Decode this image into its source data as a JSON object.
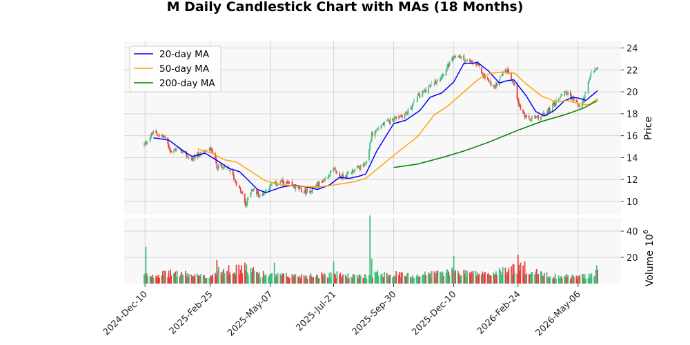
{
  "chart_data": {
    "type": "candlestick",
    "title": "M Daily Candlestick Chart with MAs (18 Months)",
    "price_axis": {
      "label": "Price",
      "ylim": [
        8.8,
        24.6
      ],
      "ticks": [
        10,
        12,
        14,
        16,
        18,
        20,
        22,
        24
      ]
    },
    "volume_axis": {
      "label": "Volume",
      "exponent_label": "10",
      "exponent_power": "6",
      "ylim": [
        0,
        50
      ],
      "ticks": [
        20,
        40
      ]
    },
    "x_axis": {
      "start": "2024-11-26",
      "end": "2026-05-29",
      "tick_labels": [
        "2024-Dec-10",
        "2025-Feb-25",
        "2025-May-07",
        "2025-Jul-21",
        "2025-Sep-30",
        "2025-Dec-10",
        "2026-Feb-24",
        "2026-May-06"
      ]
    },
    "grid": true,
    "legend_position": "top-left",
    "colors": {
      "up": "#3fbf7f",
      "down": "#e8403f",
      "ma20": "#0000ff",
      "ma50": "#ffa500",
      "ma200": "#008000"
    },
    "close_anchors": [
      [
        "2024-12-10",
        15.2
      ],
      [
        "2024-12-20",
        16.3
      ],
      [
        "2025-01-03",
        15.8
      ],
      [
        "2025-01-10",
        14.4
      ],
      [
        "2025-01-17",
        14.9
      ],
      [
        "2025-02-03",
        13.8
      ],
      [
        "2025-02-12",
        14.3
      ],
      [
        "2025-02-27",
        14.8
      ],
      [
        "2025-03-05",
        13.2
      ],
      [
        "2025-03-20",
        12.9
      ],
      [
        "2025-04-04",
        10.6
      ],
      [
        "2025-04-08",
        9.6
      ],
      [
        "2025-04-15",
        11.2
      ],
      [
        "2025-04-25",
        10.5
      ],
      [
        "2025-05-07",
        11.4
      ],
      [
        "2025-05-20",
        11.8
      ],
      [
        "2025-06-05",
        11.3
      ],
      [
        "2025-06-20",
        10.8
      ],
      [
        "2025-07-10",
        12.0
      ],
      [
        "2025-07-21",
        12.9
      ],
      [
        "2025-07-30",
        12.2
      ],
      [
        "2025-08-15",
        12.9
      ],
      [
        "2025-08-28",
        13.3
      ],
      [
        "2025-09-04",
        16.1
      ],
      [
        "2025-09-15",
        16.9
      ],
      [
        "2025-09-30",
        17.6
      ],
      [
        "2025-10-15",
        18.0
      ],
      [
        "2025-10-29",
        19.6
      ],
      [
        "2025-11-12",
        20.5
      ],
      [
        "2025-11-26",
        21.5
      ],
      [
        "2025-12-08",
        22.9
      ],
      [
        "2025-12-15",
        23.3
      ],
      [
        "2025-12-24",
        22.8
      ],
      [
        "2026-01-06",
        22.5
      ],
      [
        "2026-01-16",
        21.3
      ],
      [
        "2026-01-28",
        20.4
      ],
      [
        "2026-02-04",
        21.6
      ],
      [
        "2026-02-12",
        22.0
      ],
      [
        "2026-02-20",
        20.5
      ],
      [
        "2026-02-26",
        18.6
      ],
      [
        "2026-03-06",
        17.5
      ],
      [
        "2026-03-17",
        17.6
      ],
      [
        "2026-03-27",
        17.9
      ],
      [
        "2026-04-08",
        18.9
      ],
      [
        "2026-04-20",
        20.1
      ],
      [
        "2026-05-01",
        19.3
      ],
      [
        "2026-05-08",
        18.6
      ],
      [
        "2026-05-15",
        19.8
      ],
      [
        "2026-05-22",
        21.9
      ],
      [
        "2026-05-29",
        22.1
      ]
    ],
    "series": [
      {
        "name": "20-day MA",
        "points": [
          [
            "2024-12-20",
            15.8
          ],
          [
            "2025-01-07",
            15.6
          ],
          [
            "2025-01-28",
            14.4
          ],
          [
            "2025-02-04",
            14.1
          ],
          [
            "2025-02-19",
            14.4
          ],
          [
            "2025-03-06",
            13.7
          ],
          [
            "2025-03-20",
            13.0
          ],
          [
            "2025-04-01",
            12.7
          ],
          [
            "2025-04-22",
            11.1
          ],
          [
            "2025-05-02",
            10.8
          ],
          [
            "2025-05-20",
            11.3
          ],
          [
            "2025-06-05",
            11.5
          ],
          [
            "2025-06-20",
            11.3
          ],
          [
            "2025-07-02",
            11.1
          ],
          [
            "2025-07-16",
            11.5
          ],
          [
            "2025-07-28",
            12.2
          ],
          [
            "2025-08-08",
            12.1
          ],
          [
            "2025-08-20",
            12.3
          ],
          [
            "2025-08-28",
            12.5
          ],
          [
            "2025-09-10",
            14.6
          ],
          [
            "2025-09-30",
            17.1
          ],
          [
            "2025-10-14",
            17.4
          ],
          [
            "2025-10-31",
            18.3
          ],
          [
            "2025-11-12",
            19.5
          ],
          [
            "2025-11-26",
            19.9
          ],
          [
            "2025-12-10",
            20.9
          ],
          [
            "2025-12-22",
            22.6
          ],
          [
            "2026-01-02",
            22.6
          ],
          [
            "2026-01-07",
            22.7
          ],
          [
            "2026-01-20",
            21.9
          ],
          [
            "2026-02-02",
            20.8
          ],
          [
            "2026-02-10",
            21.0
          ],
          [
            "2026-02-19",
            21.1
          ],
          [
            "2026-03-06",
            19.6
          ],
          [
            "2026-03-17",
            18.2
          ],
          [
            "2026-03-27",
            17.8
          ],
          [
            "2026-04-08",
            18.3
          ],
          [
            "2026-04-20",
            19.2
          ],
          [
            "2026-04-30",
            19.5
          ],
          [
            "2026-05-08",
            19.4
          ],
          [
            "2026-05-15",
            19.2
          ],
          [
            "2026-05-29",
            20.1
          ]
        ]
      },
      {
        "name": "50-day MA",
        "points": [
          [
            "2025-02-10",
            14.8
          ],
          [
            "2025-02-27",
            14.4
          ],
          [
            "2025-03-14",
            13.8
          ],
          [
            "2025-03-28",
            13.6
          ],
          [
            "2025-04-11",
            12.9
          ],
          [
            "2025-05-01",
            11.9
          ],
          [
            "2025-05-20",
            11.5
          ],
          [
            "2025-06-12",
            11.4
          ],
          [
            "2025-07-02",
            11.3
          ],
          [
            "2025-07-21",
            11.5
          ],
          [
            "2025-08-15",
            11.8
          ],
          [
            "2025-08-28",
            12.1
          ],
          [
            "2025-09-30",
            14.2
          ],
          [
            "2025-10-28",
            15.9
          ],
          [
            "2025-11-17",
            17.9
          ],
          [
            "2025-12-03",
            18.7
          ],
          [
            "2025-12-22",
            20.0
          ],
          [
            "2026-01-09",
            21.2
          ],
          [
            "2026-01-23",
            21.7
          ],
          [
            "2026-02-06",
            21.8
          ],
          [
            "2026-02-20",
            21.7
          ],
          [
            "2026-03-06",
            20.7
          ],
          [
            "2026-03-24",
            19.6
          ],
          [
            "2026-04-10",
            19.1
          ],
          [
            "2026-04-24",
            19.2
          ],
          [
            "2026-05-08",
            18.9
          ],
          [
            "2026-05-19",
            18.8
          ],
          [
            "2026-05-29",
            19.4
          ]
        ]
      },
      {
        "name": "200-day MA",
        "points": [
          [
            "2025-09-30",
            13.1
          ],
          [
            "2025-10-28",
            13.4
          ],
          [
            "2025-11-26",
            14.0
          ],
          [
            "2025-12-22",
            14.6
          ],
          [
            "2026-01-20",
            15.4
          ],
          [
            "2026-02-24",
            16.5
          ],
          [
            "2026-03-24",
            17.3
          ],
          [
            "2026-04-20",
            17.9
          ],
          [
            "2026-05-12",
            18.5
          ],
          [
            "2026-05-29",
            19.2
          ]
        ]
      }
    ],
    "volume_anchors": [
      [
        "2024-12-10",
        6
      ],
      [
        "2025-01-15",
        8
      ],
      [
        "2025-02-20",
        5
      ],
      [
        "2025-03-10",
        10
      ],
      [
        "2025-04-07",
        11
      ],
      [
        "2025-05-07",
        6
      ],
      [
        "2025-06-20",
        6
      ],
      [
        "2025-07-21",
        7
      ],
      [
        "2025-08-20",
        5
      ],
      [
        "2025-09-15",
        8
      ],
      [
        "2025-10-20",
        6
      ],
      [
        "2025-12-10",
        9
      ],
      [
        "2026-01-20",
        7
      ],
      [
        "2026-02-24",
        12
      ],
      [
        "2026-04-01",
        6
      ],
      [
        "2026-05-06",
        5
      ],
      [
        "2026-05-29",
        8
      ]
    ],
    "volume_spikes": [
      [
        "2024-12-11",
        28
      ],
      [
        "2025-03-05",
        18
      ],
      [
        "2025-03-19",
        14
      ],
      [
        "2025-04-07",
        16
      ],
      [
        "2025-05-12",
        16
      ],
      [
        "2025-07-21",
        17
      ],
      [
        "2025-09-02",
        52
      ],
      [
        "2025-09-04",
        19
      ],
      [
        "2025-12-10",
        21
      ],
      [
        "2026-02-24",
        22
      ],
      [
        "2026-03-04",
        17
      ],
      [
        "2026-05-28",
        14
      ]
    ]
  }
}
